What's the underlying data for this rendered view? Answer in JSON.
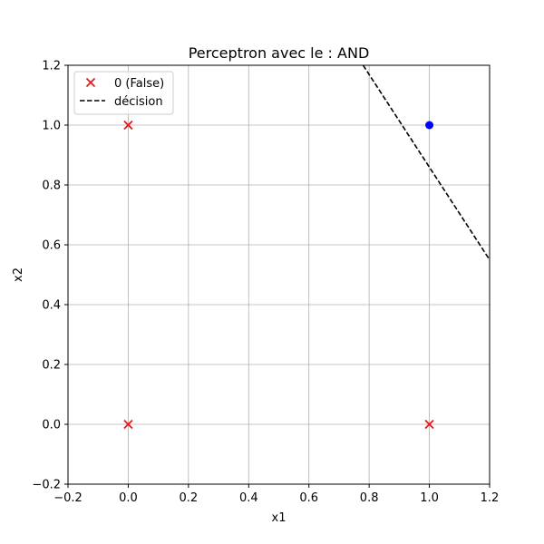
{
  "chart_data": {
    "type": "scatter",
    "title": "Perceptron avec le : AND",
    "xlabel": "x1",
    "ylabel": "x2",
    "xlim": [
      -0.2,
      1.2
    ],
    "ylim": [
      -0.2,
      1.2
    ],
    "xticks": [
      -0.2,
      0.0,
      0.2,
      0.4,
      0.6,
      0.8,
      1.0,
      1.2
    ],
    "yticks": [
      -0.2,
      0.0,
      0.2,
      0.4,
      0.6,
      0.8,
      1.0,
      1.2
    ],
    "xtick_labels": [
      "−0.2",
      "0.0",
      "0.2",
      "0.4",
      "0.6",
      "0.8",
      "1.0",
      "1.2"
    ],
    "ytick_labels": [
      "−0.2",
      "0.0",
      "0.2",
      "0.4",
      "0.6",
      "0.8",
      "1.0",
      "1.2"
    ],
    "grid": true,
    "legend_position": "top-left",
    "series": [
      {
        "name": "0 (False)",
        "marker": "x",
        "color": "#e41a1c",
        "points": [
          [
            0,
            0
          ],
          [
            0,
            1
          ],
          [
            1,
            0
          ]
        ]
      },
      {
        "marker": "circle",
        "color": "#0000ff",
        "points": [
          [
            1,
            1
          ]
        ]
      }
    ],
    "decision_line": {
      "name": "décision",
      "style": "dashed",
      "color": "#000000",
      "points": [
        [
          0.78,
          1.2
        ],
        [
          1.2,
          0.55
        ]
      ]
    }
  }
}
